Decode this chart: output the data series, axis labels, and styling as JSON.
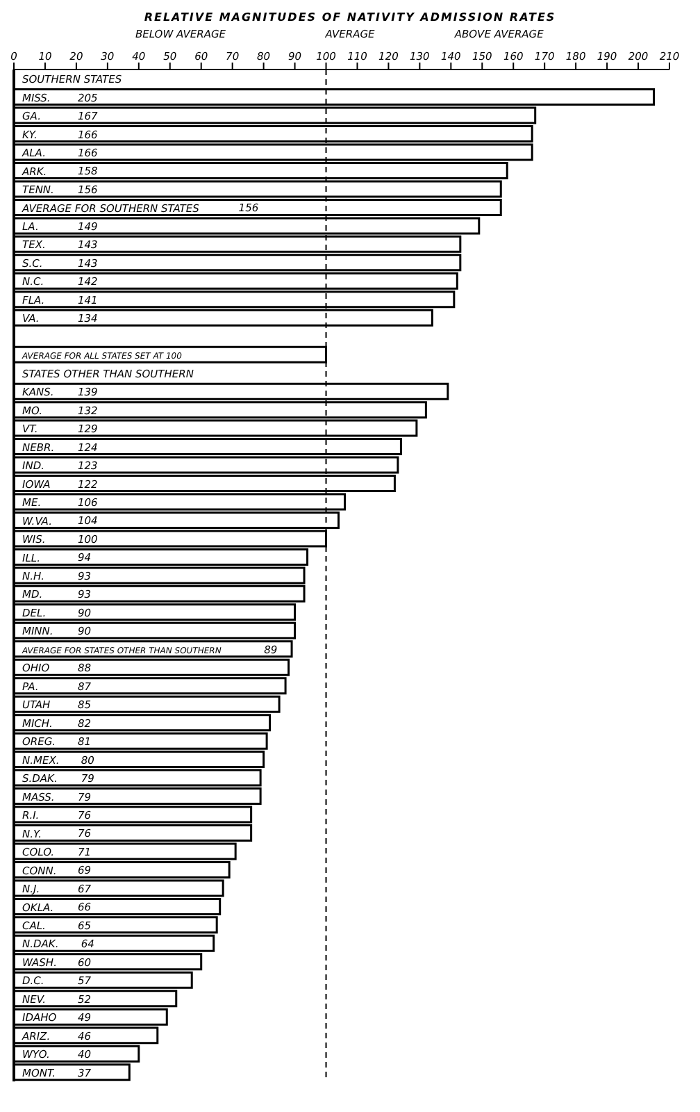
{
  "chart_data": {
    "type": "bar",
    "orientation": "horizontal",
    "title": "RELATIVE MAGNITUDES OF NATIVITY ADMISSION RATES",
    "annotations": [
      "BELOW AVERAGE",
      "AVERAGE",
      "ABOVE AVERAGE"
    ],
    "categories": [
      "SOUTHERN STATES",
      "MISS.",
      "GA.",
      "KY.",
      "ALA.",
      "ARK.",
      "TENN.",
      "AVERAGE FOR SOUTHERN STATES",
      "LA.",
      "TEX.",
      "S.C.",
      "N.C.",
      "FLA.",
      "VA.",
      null,
      "AVERAGE FOR ALL STATES SET AT 100",
      "STATES OTHER THAN SOUTHERN",
      "KANS.",
      "MO.",
      "VT.",
      "NEBR.",
      "IND.",
      "IOWA",
      "ME.",
      "W.VA.",
      "WIS.",
      "ILL.",
      "N.H.",
      "MD.",
      "DEL.",
      "MINN.",
      "AVERAGE FOR STATES OTHER THAN SOUTHERN",
      "OHIO",
      "PA.",
      "UTAH",
      "MICH.",
      "OREG.",
      "N.MEX.",
      "S.DAK.",
      "MASS.",
      "R.I.",
      "N.Y.",
      "COLO.",
      "CONN.",
      "N.J.",
      "OKLA.",
      "CAL.",
      "N.DAK.",
      "WASH.",
      "D.C.",
      "NEV.",
      "IDAHO",
      "ARIZ.",
      "WYO.",
      "MONT."
    ],
    "values": [
      null,
      205,
      167,
      166,
      166,
      158,
      156,
      156,
      149,
      143,
      143,
      142,
      141,
      134,
      null,
      100,
      null,
      139,
      132,
      129,
      124,
      123,
      122,
      106,
      104,
      100,
      94,
      93,
      93,
      90,
      90,
      89,
      88,
      87,
      85,
      82,
      81,
      80,
      79,
      79,
      76,
      76,
      71,
      69,
      67,
      66,
      65,
      64,
      60,
      57,
      52,
      49,
      46,
      40,
      37
    ],
    "value_labels": [
      null,
      "205",
      "167",
      "166",
      "166",
      "158",
      "156",
      "156",
      "149",
      "143",
      "143",
      "142",
      "141",
      "134",
      null,
      null,
      null,
      "139",
      "132",
      "129",
      "124",
      "123",
      "122",
      "106",
      "104",
      "100",
      "94",
      "93",
      "93",
      "90",
      "90",
      "89",
      "88",
      "87",
      "85",
      "82",
      "81",
      "80",
      "79",
      "79",
      "76",
      "76",
      "71",
      "69",
      "67",
      "66",
      "65",
      "64",
      "60",
      "57",
      "52",
      "49",
      "46",
      "40",
      "37"
    ],
    "color": "#ffffff",
    "xlim": [
      0,
      210
    ],
    "xticks": [
      0,
      10,
      20,
      30,
      40,
      50,
      60,
      70,
      80,
      90,
      100,
      110,
      120,
      130,
      140,
      150,
      160,
      170,
      180,
      190,
      200,
      210
    ],
    "ref_lines": [
      {
        "axis": "x",
        "value": 100,
        "line_style": "dashed",
        "color": "#000000"
      }
    ],
    "grid": false,
    "legend": false
  }
}
